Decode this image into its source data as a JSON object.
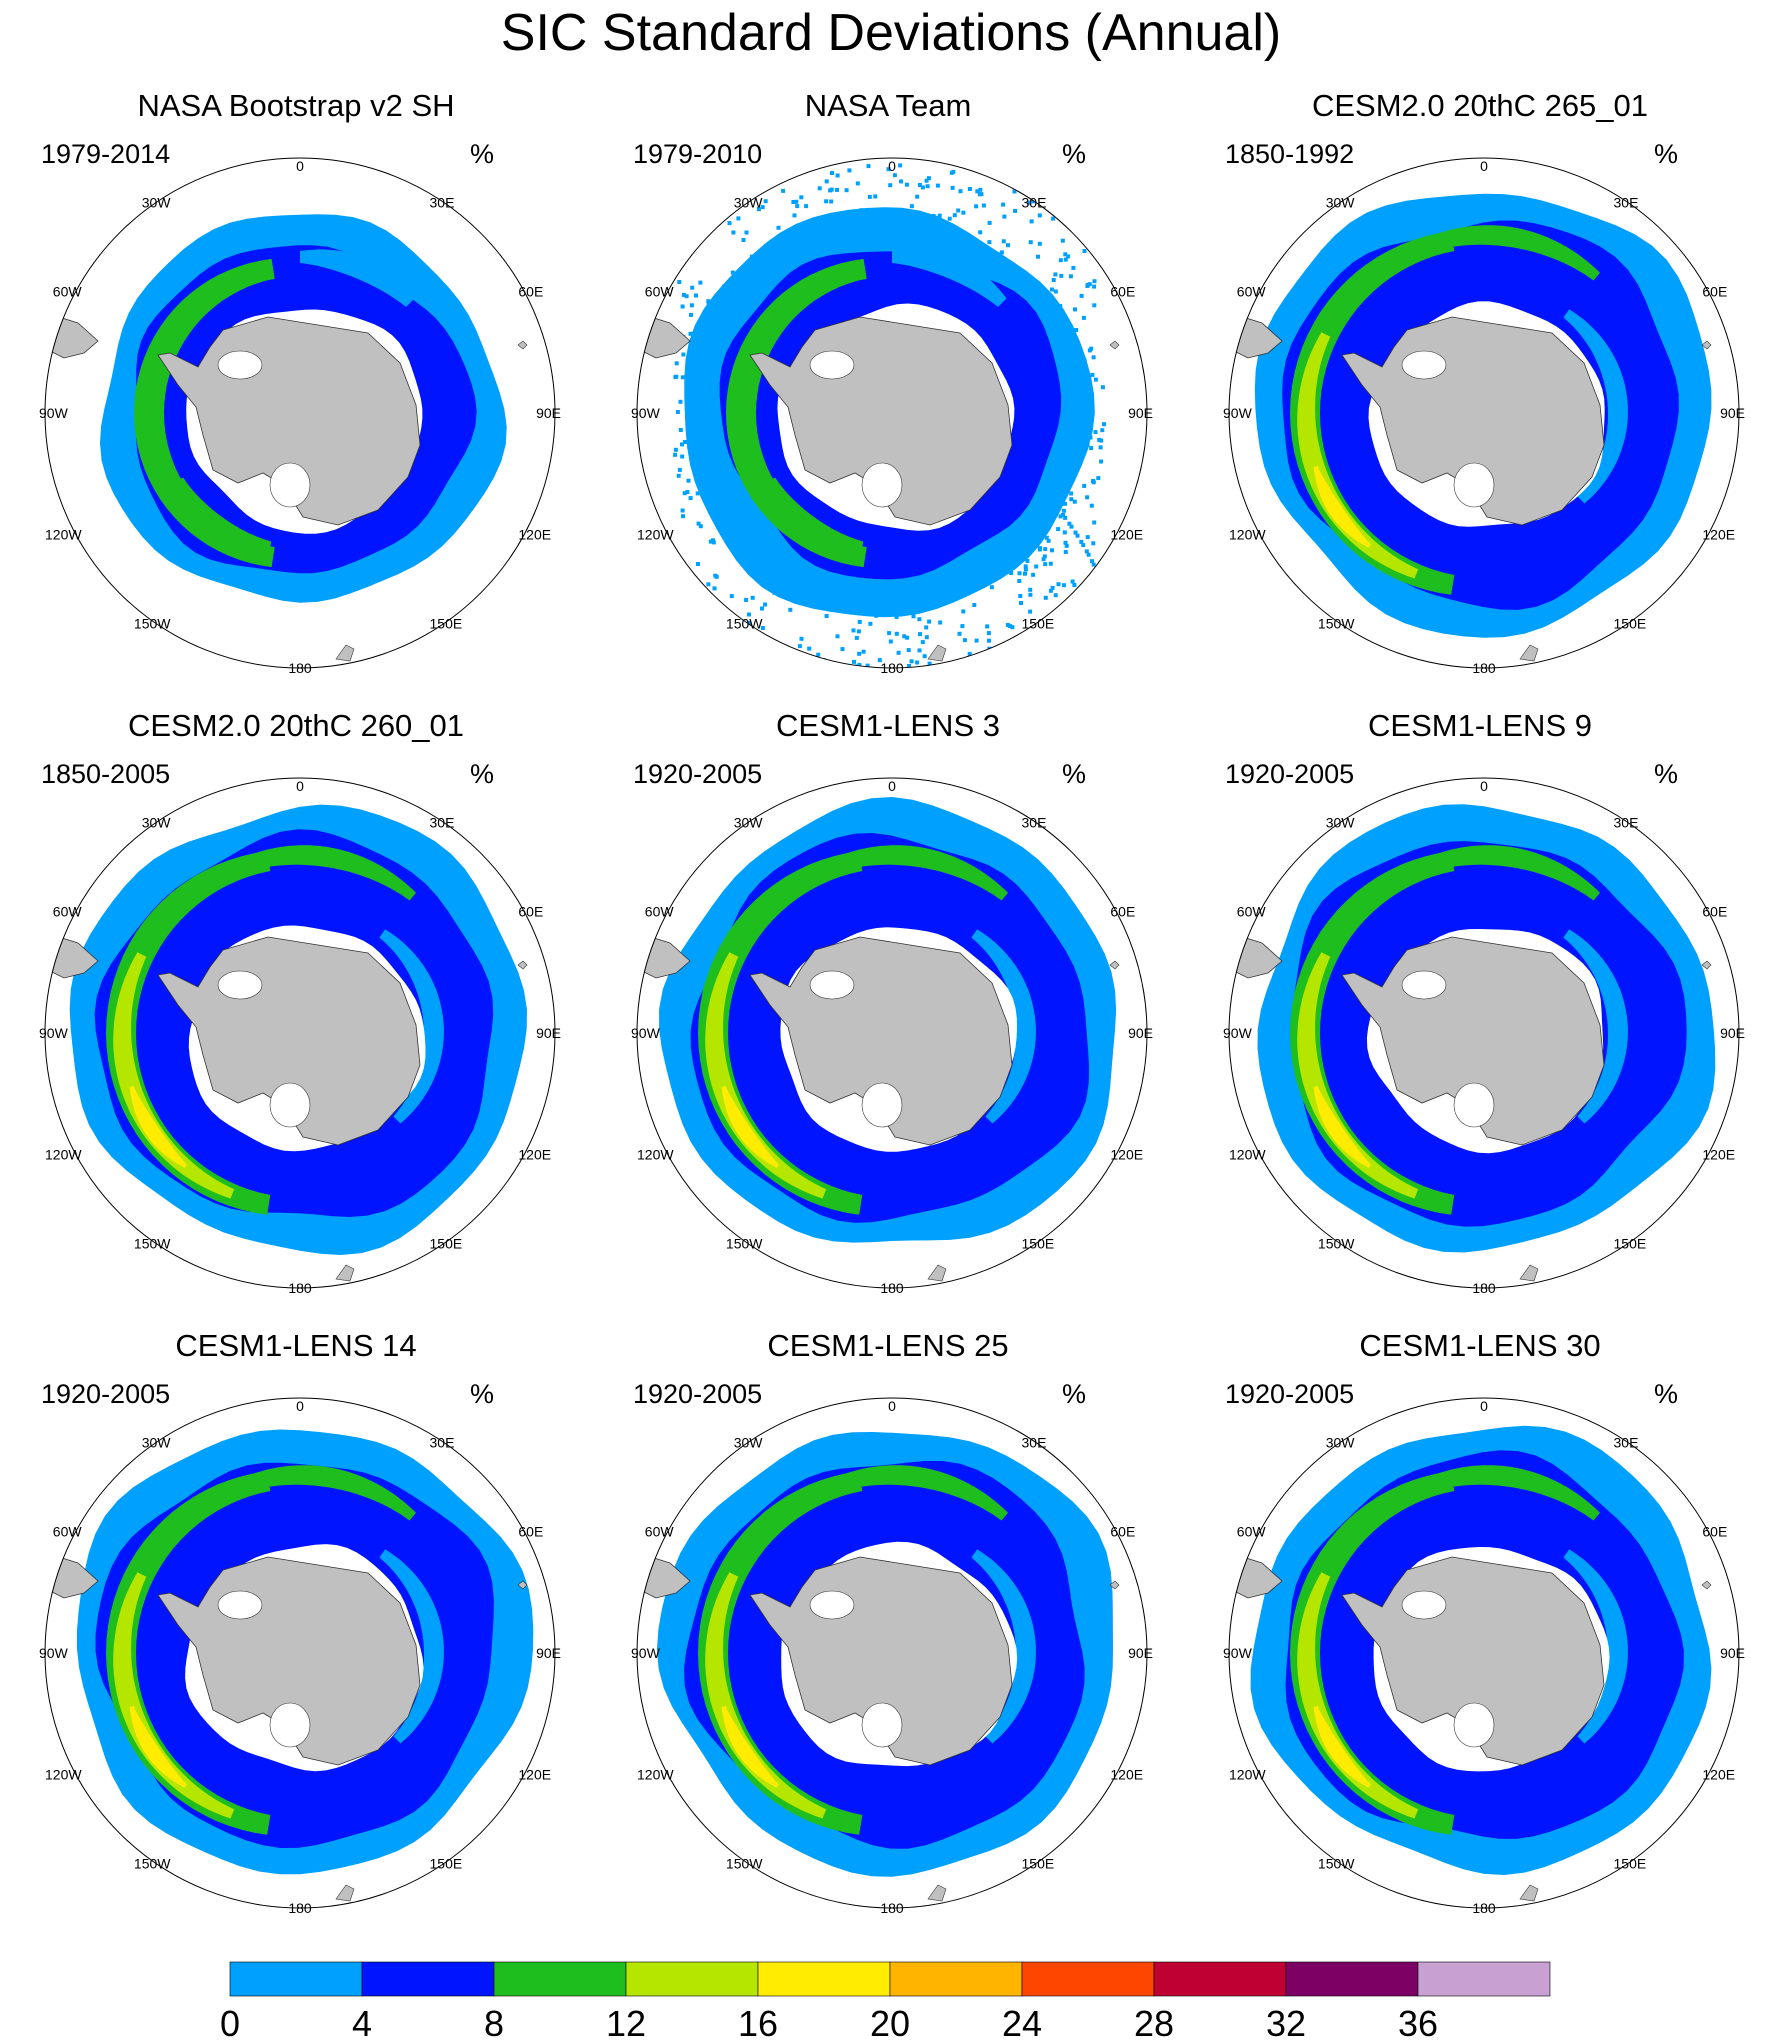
{
  "title": "SIC Standard Deviations (Annual)",
  "unit": "%",
  "panels": [
    {
      "title": "NASA Bootstrap v2 SH",
      "period": "1979-2014",
      "style": "obs-bootstrap"
    },
    {
      "title": "NASA Team",
      "period": "1979-2010",
      "style": "obs-team"
    },
    {
      "title": "CESM2.0 20thC 265_01",
      "period": "1850-1992",
      "style": "model"
    },
    {
      "title": "CESM2.0 20thC 260_01",
      "period": "1850-2005",
      "style": "model"
    },
    {
      "title": "CESM1-LENS 3",
      "period": "1920-2005",
      "style": "model"
    },
    {
      "title": "CESM1-LENS 9",
      "period": "1920-2005",
      "style": "model"
    },
    {
      "title": "CESM1-LENS 14",
      "period": "1920-2005",
      "style": "model"
    },
    {
      "title": "CESM1-LENS 25",
      "period": "1920-2005",
      "style": "model"
    },
    {
      "title": "CESM1-LENS 30",
      "period": "1920-2005",
      "style": "model"
    }
  ],
  "longitude_labels": [
    "0",
    "30E",
    "60E",
    "90E",
    "120E",
    "150E",
    "180",
    "150W",
    "120W",
    "90W",
    "60W",
    "30W"
  ],
  "colorbar": {
    "ticks": [
      "0",
      "4",
      "8",
      "12",
      "16",
      "20",
      "24",
      "28",
      "32",
      "36"
    ],
    "colors": [
      "#00a0ff",
      "#0014ff",
      "#1ebe1e",
      "#b4e600",
      "#ffec00",
      "#ffb400",
      "#ff4600",
      "#be0032",
      "#7d0064",
      "#c8a0d2"
    ]
  },
  "colors": {
    "land": "#c0c0c0",
    "ocean_bg": "#ffffff",
    "level_4_8": "#0014ff",
    "level_0_4": "#00a0ff",
    "level_8_12": "#1ebe1e",
    "level_12_16": "#b4e600",
    "level_16_20": "#ffec00"
  }
}
